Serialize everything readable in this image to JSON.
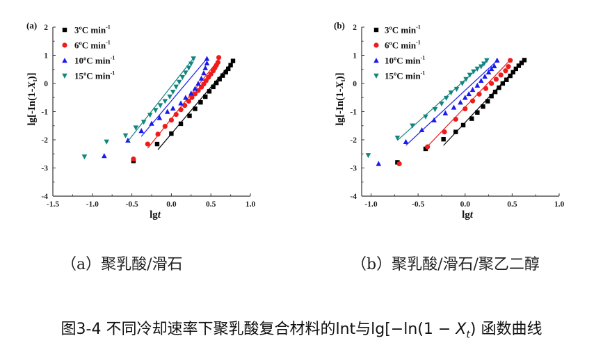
{
  "captions": {
    "a": "（a）聚乳酸/滑石",
    "b": "（b）聚乳酸/滑石/聚乙二醇"
  },
  "figure_title": "图3-4 不同冷却速率下聚乳酸复合材料的lnt与lg[−ln(1 − X",
  "figure_title_sub": "t",
  "figure_title_end": ") 函数曲线",
  "colors": {
    "3": "#000000",
    "6": "#ee1c1c",
    "10": "#1a1aee",
    "15": "#14857e"
  },
  "chart_data": [
    {
      "type": "scatter",
      "panel_label": "(a)",
      "xlabel": "lgt",
      "ylabel": "lg[-In(1-Xt)]",
      "xlim": [
        -1.5,
        1.0
      ],
      "ylim": [
        -4,
        2
      ],
      "xticks": [
        "-1.5",
        "-1.0",
        "-0.5",
        "0.0",
        "0.5",
        "1.0"
      ],
      "yticks": [
        "-4",
        "-3",
        "-2",
        "-1",
        "0",
        "1",
        "2"
      ],
      "legend_position": "top-left",
      "series": [
        {
          "name": "3ºC min-1",
          "label": "3ºC min",
          "sup": "-1",
          "key": "3",
          "marker": "square",
          "points": [
            [
              -0.48,
              -2.75
            ],
            [
              -0.18,
              -2.15
            ],
            [
              0.0,
              -1.78
            ],
            [
              0.12,
              -1.43
            ],
            [
              0.23,
              -1.15
            ],
            [
              0.3,
              -0.9
            ],
            [
              0.37,
              -0.67
            ],
            [
              0.43,
              -0.47
            ],
            [
              0.48,
              -0.28
            ],
            [
              0.53,
              -0.12
            ],
            [
              0.57,
              0.02
            ],
            [
              0.61,
              0.15
            ],
            [
              0.65,
              0.28
            ],
            [
              0.69,
              0.4
            ],
            [
              0.72,
              0.52
            ],
            [
              0.75,
              0.65
            ],
            [
              0.78,
              0.8
            ]
          ],
          "fit": [
            [
              -0.17,
              -2.35
            ],
            [
              0.78,
              0.8
            ]
          ]
        },
        {
          "name": "6ºC min-1",
          "label": "6ºC min",
          "sup": "-1",
          "key": "6",
          "marker": "circle",
          "points": [
            [
              -0.48,
              -2.68
            ],
            [
              -0.3,
              -2.15
            ],
            [
              -0.17,
              -1.8
            ],
            [
              -0.08,
              -1.52
            ],
            [
              0.0,
              -1.3
            ],
            [
              0.06,
              -1.1
            ],
            [
              0.12,
              -0.93
            ],
            [
              0.17,
              -0.78
            ],
            [
              0.22,
              -0.63
            ],
            [
              0.26,
              -0.5
            ],
            [
              0.3,
              -0.37
            ],
            [
              0.34,
              -0.25
            ],
            [
              0.38,
              -0.13
            ],
            [
              0.41,
              -0.02
            ],
            [
              0.44,
              0.1
            ],
            [
              0.47,
              0.22
            ],
            [
              0.5,
              0.33
            ],
            [
              0.53,
              0.45
            ],
            [
              0.55,
              0.55
            ],
            [
              0.57,
              0.65
            ],
            [
              0.59,
              0.75
            ],
            [
              0.6,
              0.92
            ]
          ],
          "fit": [
            [
              -0.3,
              -2.3
            ],
            [
              0.6,
              0.85
            ]
          ]
        },
        {
          "name": "10ºC min-1",
          "label": "10ºC min",
          "sup": "-1",
          "key": "10",
          "marker": "triangle-up",
          "points": [
            [
              -0.85,
              -2.57
            ],
            [
              -0.55,
              -2.02
            ],
            [
              -0.38,
              -1.68
            ],
            [
              -0.25,
              -1.42
            ],
            [
              -0.15,
              -1.22
            ],
            [
              -0.05,
              -1.0
            ],
            [
              0.02,
              -0.88
            ],
            [
              0.12,
              -0.7
            ],
            [
              0.18,
              -0.5
            ],
            [
              0.25,
              -0.35
            ],
            [
              0.3,
              -0.18
            ],
            [
              0.34,
              0.0
            ],
            [
              0.38,
              0.18
            ],
            [
              0.41,
              0.37
            ],
            [
              0.43,
              0.55
            ],
            [
              0.45,
              0.72
            ],
            [
              0.45,
              0.88
            ]
          ],
          "fit": [
            [
              -0.38,
              -1.88
            ],
            [
              0.45,
              0.88
            ]
          ]
        },
        {
          "name": "15ºC min-1",
          "label": "15ºC min",
          "sup": "-1",
          "key": "15",
          "marker": "triangle-down",
          "points": [
            [
              -1.1,
              -2.6
            ],
            [
              -0.82,
              -2.07
            ],
            [
              -0.58,
              -1.85
            ],
            [
              -0.45,
              -1.57
            ],
            [
              -0.35,
              -1.37
            ],
            [
              -0.27,
              -1.12
            ],
            [
              -0.2,
              -0.95
            ],
            [
              -0.14,
              -0.78
            ],
            [
              -0.08,
              -0.63
            ],
            [
              -0.02,
              -0.47
            ],
            [
              0.02,
              -0.3
            ],
            [
              0.06,
              -0.12
            ],
            [
              0.1,
              0.05
            ],
            [
              0.14,
              0.22
            ],
            [
              0.18,
              0.38
            ],
            [
              0.22,
              0.55
            ],
            [
              0.25,
              0.7
            ],
            [
              0.28,
              0.88
            ]
          ],
          "fit": [
            [
              -0.55,
              -2.05
            ],
            [
              0.28,
              0.9
            ]
          ]
        }
      ]
    },
    {
      "type": "scatter",
      "panel_label": "(b)",
      "xlabel": "lgt",
      "ylabel": "lg[-In(1-Xt)]",
      "xlim": [
        -1.1,
        1.0
      ],
      "ylim": [
        -4,
        2
      ],
      "xticks": [
        "-1.0",
        "-0.5",
        "0.0",
        "0.5",
        "1.0"
      ],
      "yticks": [
        "-4",
        "-3",
        "-2",
        "-1",
        "0",
        "1",
        "2"
      ],
      "legend_position": "top-left",
      "series": [
        {
          "name": "3ºC min-1",
          "label": "3ºC min",
          "sup": "-1",
          "key": "3",
          "marker": "square",
          "points": [
            [
              -0.72,
              -2.8
            ],
            [
              -0.42,
              -2.32
            ],
            [
              -0.23,
              -1.98
            ],
            [
              -0.1,
              -1.72
            ],
            [
              -0.02,
              -1.48
            ],
            [
              0.07,
              -1.25
            ],
            [
              0.13,
              -1.03
            ],
            [
              0.19,
              -0.82
            ],
            [
              0.24,
              -0.63
            ],
            [
              0.28,
              -0.45
            ],
            [
              0.32,
              -0.3
            ],
            [
              0.36,
              -0.15
            ],
            [
              0.4,
              0.0
            ],
            [
              0.44,
              0.13
            ],
            [
              0.48,
              0.27
            ],
            [
              0.51,
              0.4
            ],
            [
              0.54,
              0.52
            ],
            [
              0.57,
              0.63
            ],
            [
              0.6,
              0.73
            ],
            [
              0.63,
              0.83
            ]
          ],
          "fit": [
            [
              -0.23,
              -2.2
            ],
            [
              0.63,
              0.85
            ]
          ]
        },
        {
          "name": "6ºC min-1",
          "label": "6ºC min",
          "sup": "-1",
          "key": "6",
          "marker": "circle",
          "points": [
            [
              -0.7,
              -2.85
            ],
            [
              -0.4,
              -2.25
            ],
            [
              -0.22,
              -1.72
            ],
            [
              -0.1,
              -1.27
            ],
            [
              0.0,
              -0.9
            ],
            [
              0.08,
              -0.62
            ],
            [
              0.15,
              -0.38
            ],
            [
              0.22,
              -0.18
            ],
            [
              0.28,
              0.0
            ],
            [
              0.33,
              0.15
            ],
            [
              0.38,
              0.3
            ],
            [
              0.43,
              0.45
            ],
            [
              0.46,
              0.6
            ],
            [
              0.48,
              0.82
            ]
          ],
          "fit": [
            [
              -0.42,
              -2.3
            ],
            [
              0.47,
              0.8
            ]
          ]
        },
        {
          "name": "10ºC min-1",
          "label": "10ºC min",
          "sup": "-1",
          "key": "10",
          "marker": "triangle-up",
          "points": [
            [
              -0.92,
              -2.85
            ],
            [
              -0.63,
              -2.07
            ],
            [
              -0.46,
              -1.65
            ],
            [
              -0.33,
              -1.3
            ],
            [
              -0.21,
              -1.05
            ],
            [
              -0.12,
              -0.85
            ],
            [
              -0.05,
              -0.67
            ],
            [
              0.0,
              -0.5
            ],
            [
              0.04,
              -0.37
            ],
            [
              0.08,
              -0.22
            ],
            [
              0.13,
              -0.07
            ],
            [
              0.17,
              0.1
            ],
            [
              0.21,
              0.25
            ],
            [
              0.25,
              0.4
            ],
            [
              0.28,
              0.52
            ],
            [
              0.31,
              0.62
            ],
            [
              0.34,
              0.82
            ]
          ],
          "fit": [
            [
              -0.63,
              -2.2
            ],
            [
              0.33,
              0.78
            ]
          ]
        },
        {
          "name": "15ºC min-1",
          "label": "15ºC min",
          "sup": "-1",
          "key": "15",
          "marker": "triangle-down",
          "points": [
            [
              -1.03,
              -2.55
            ],
            [
              -0.72,
              -1.93
            ],
            [
              -0.56,
              -1.5
            ],
            [
              -0.42,
              -1.18
            ],
            [
              -0.32,
              -0.92
            ],
            [
              -0.25,
              -0.72
            ],
            [
              -0.2,
              -0.52
            ],
            [
              -0.15,
              -0.33
            ],
            [
              -0.09,
              -0.2
            ],
            [
              -0.03,
              0.0
            ],
            [
              0.01,
              0.15
            ],
            [
              0.05,
              0.3
            ],
            [
              0.09,
              0.42
            ],
            [
              0.13,
              0.52
            ],
            [
              0.17,
              0.6
            ],
            [
              0.2,
              0.7
            ],
            [
              0.23,
              0.82
            ]
          ],
          "fit": [
            [
              -0.72,
              -2.02
            ],
            [
              0.24,
              0.85
            ]
          ]
        }
      ]
    }
  ]
}
